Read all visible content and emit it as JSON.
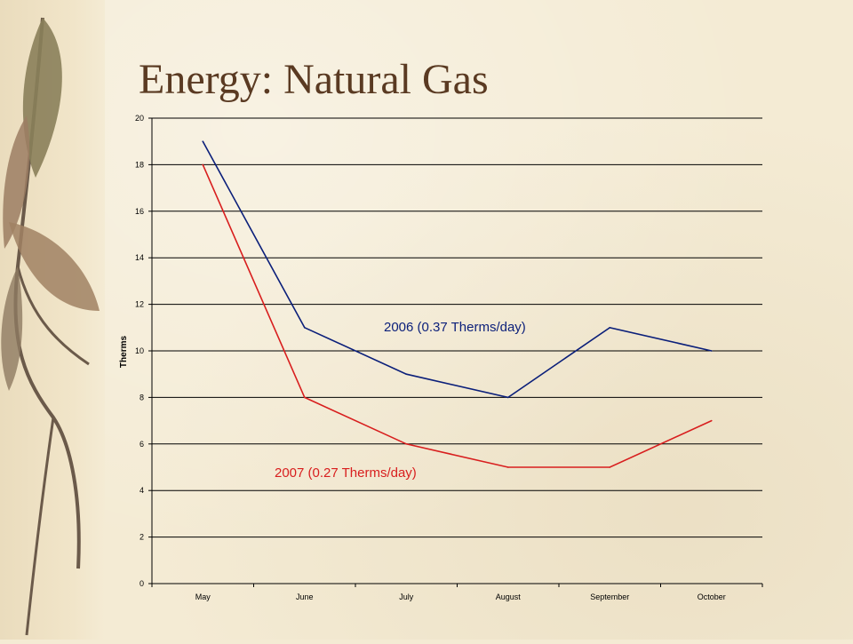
{
  "slide": {
    "title": "Energy: Natural Gas"
  },
  "colors": {
    "series_2006": "#0b1f7a",
    "series_2007": "#d81e1e",
    "title": "#5a3a22",
    "background": "#f4ebd4"
  },
  "chart_data": {
    "type": "line",
    "title": "",
    "xlabel": "",
    "ylabel": "Therms",
    "ylim": [
      0,
      20
    ],
    "yticks": [
      "0",
      "2",
      "4",
      "6",
      "8",
      "10",
      "12",
      "14",
      "16",
      "18",
      "20"
    ],
    "categories": [
      "May",
      "June",
      "July",
      "August",
      "September",
      "October"
    ],
    "grid": true,
    "series": [
      {
        "name": "2006 (0.37 Therms/day)",
        "color": "#0b1f7a",
        "values": [
          19,
          11,
          9,
          8,
          11,
          10
        ]
      },
      {
        "name": "2007 (0.27 Therms/day)",
        "color": "#d81e1e",
        "values": [
          18,
          8,
          6,
          5,
          5,
          7
        ]
      }
    ],
    "annotations": [
      "2006 (0.37 Therms/day)",
      "2007 (0.27 Therms/day)"
    ]
  }
}
